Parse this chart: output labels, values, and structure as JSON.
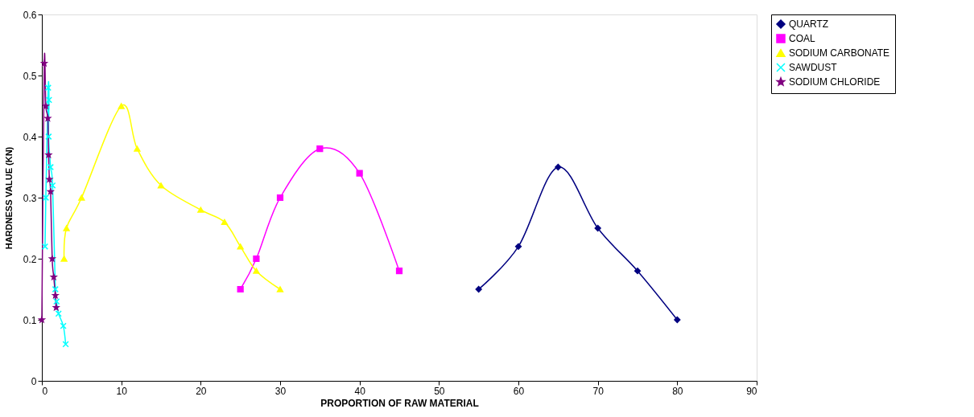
{
  "chart_data": {
    "type": "line",
    "xlabel": "PROPORTION OF RAW MATERIAL",
    "ylabel": "HARDNESS VALUE (KN)",
    "xlim": [
      0,
      90
    ],
    "xticks": [
      0,
      10,
      20,
      30,
      40,
      50,
      60,
      70,
      80,
      90
    ],
    "ylim": [
      0,
      0.6
    ],
    "yticks": [
      0,
      0.1,
      0.2,
      0.3,
      0.4,
      0.5,
      0.6
    ],
    "grid": false,
    "legend": "right",
    "line_style": "solid",
    "series": [
      {
        "name": "QUARTZ",
        "color": "#000080",
        "marker": "diamond",
        "x": [
          55,
          60,
          65,
          70,
          75,
          80
        ],
        "values": [
          0.15,
          0.22,
          0.35,
          0.25,
          0.18,
          0.1
        ]
      },
      {
        "name": "COAL",
        "color": "#ff00ff",
        "marker": "square",
        "x": [
          25,
          27,
          30,
          35,
          40,
          45
        ],
        "values": [
          0.15,
          0.2,
          0.3,
          0.38,
          0.34,
          0.18
        ]
      },
      {
        "name": "SODIUM CARBONATE",
        "color": "#ffff00",
        "marker": "triangle",
        "x": [
          2.8,
          3.1,
          5,
          10,
          12,
          15,
          20,
          23,
          25,
          27,
          30
        ],
        "values": [
          0.2,
          0.25,
          0.3,
          0.45,
          0.38,
          0.32,
          0.28,
          0.26,
          0.22,
          0.18,
          0.15
        ]
      },
      {
        "name": "SAWDUST",
        "color": "#00ffff",
        "marker": "cross",
        "x": [
          0.4,
          0.5,
          0.8,
          0.9,
          0.85,
          1.1,
          1.35,
          1.7,
          1.85,
          2.1,
          2.7,
          3.0
        ],
        "values": [
          0.22,
          0.3,
          0.48,
          0.46,
          0.4,
          0.35,
          0.32,
          0.15,
          0.13,
          0.11,
          0.09,
          0.06
        ]
      },
      {
        "name": "SODIUM CHLORIDE",
        "color": "#800080",
        "marker": "star",
        "x": [
          0,
          0.3,
          0.5,
          0.75,
          0.85,
          0.95,
          1.1,
          1.3,
          1.5,
          1.7,
          1.8
        ],
        "values": [
          0.1,
          0.52,
          0.45,
          0.43,
          0.37,
          0.33,
          0.31,
          0.2,
          0.17,
          0.14,
          0.12
        ]
      }
    ]
  }
}
